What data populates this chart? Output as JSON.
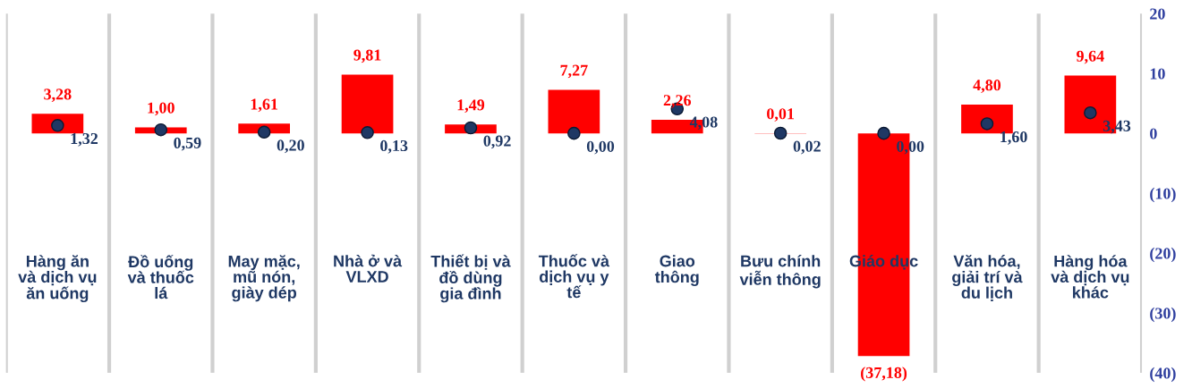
{
  "chart_data": {
    "type": "bar",
    "categories": [
      "Hàng ăn\nvà dịch vụ\năn uống",
      "Đồ uống\nvà thuốc\nlá",
      "May mặc,\nmũ nón,\ngiày dép",
      "Nhà ở và\nVLXD",
      "Thiết bị và\nđồ dùng\ngia đình",
      "Thuốc và\ndịch vụ y\ntế",
      "Giao\nthông",
      "Bưu chính\nviễn thông",
      "Giáo dục",
      "Văn hóa,\ngiải trí và\ndu lịch",
      "Hàng hóa\nvà dịch vụ\nkhác"
    ],
    "series": [
      {
        "color": "#ff0000",
        "values": [
          3.28,
          1.0,
          1.61,
          9.81,
          1.49,
          7.27,
          2.26,
          0.01,
          -37.18,
          4.8,
          9.64
        ],
        "value_labels": [
          "3,28",
          "1,00",
          "1,61",
          "9,81",
          "1,49",
          "7,27",
          "2,26",
          "0,01",
          "(37,18)",
          "4,80",
          "9,64"
        ]
      },
      {
        "type": "scatter",
        "color": "#1f3864",
        "marker": "circle",
        "values": [
          1.32,
          0.59,
          0.2,
          0.13,
          0.92,
          0.0,
          4.08,
          0.02,
          0.0,
          1.6,
          3.43
        ],
        "value_labels": [
          "1,32",
          "0,59",
          "0,20",
          "0,13",
          "0,92",
          "0,00",
          "4,08",
          "0,02",
          "0,00",
          "1,60",
          "3,43"
        ]
      }
    ],
    "ylim": [
      -40,
      20
    ],
    "yticks": [
      20,
      10,
      0,
      {
        "value": -10,
        "label": "(10)"
      },
      {
        "value": -20,
        "label": "(20)"
      },
      {
        "value": -30,
        "label": "(30)"
      },
      {
        "value": -40,
        "label": "(40)"
      }
    ],
    "grid": "x",
    "legend": false
  }
}
